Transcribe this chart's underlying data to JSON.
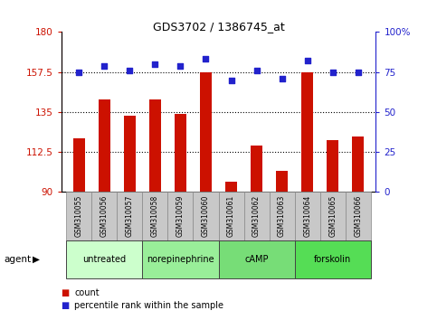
{
  "title": "GDS3702 / 1386745_at",
  "samples": [
    "GSM310055",
    "GSM310056",
    "GSM310057",
    "GSM310058",
    "GSM310059",
    "GSM310060",
    "GSM310061",
    "GSM310062",
    "GSM310063",
    "GSM310064",
    "GSM310065",
    "GSM310066"
  ],
  "bar_values": [
    120,
    142,
    133,
    142,
    134,
    157.5,
    96,
    116,
    102,
    157.5,
    119,
    121
  ],
  "dot_values": [
    75,
    79,
    76,
    80,
    79,
    83,
    70,
    76,
    71,
    82,
    75,
    75
  ],
  "ylim_left": [
    90,
    180
  ],
  "ylim_right": [
    0,
    100
  ],
  "yticks_left": [
    90,
    112.5,
    135,
    157.5,
    180
  ],
  "yticks_right": [
    0,
    25,
    50,
    75,
    100
  ],
  "ytick_labels_left": [
    "90",
    "112.5",
    "135",
    "157.5",
    "180"
  ],
  "ytick_labels_right": [
    "0",
    "25",
    "50",
    "75",
    "100%"
  ],
  "hlines": [
    112.5,
    135,
    157.5
  ],
  "bar_color": "#cc1100",
  "dot_color": "#2222cc",
  "agent_groups": [
    {
      "label": "untreated",
      "start": 0,
      "end": 3,
      "color": "#ccffcc"
    },
    {
      "label": "norepinephrine",
      "start": 3,
      "end": 6,
      "color": "#99ee99"
    },
    {
      "label": "cAMP",
      "start": 6,
      "end": 9,
      "color": "#77dd77"
    },
    {
      "label": "forskolin",
      "start": 9,
      "end": 12,
      "color": "#55dd55"
    }
  ],
  "tick_bg_color": "#c8c8c8",
  "legend_count_label": "count",
  "legend_pct_label": "percentile rank within the sample"
}
